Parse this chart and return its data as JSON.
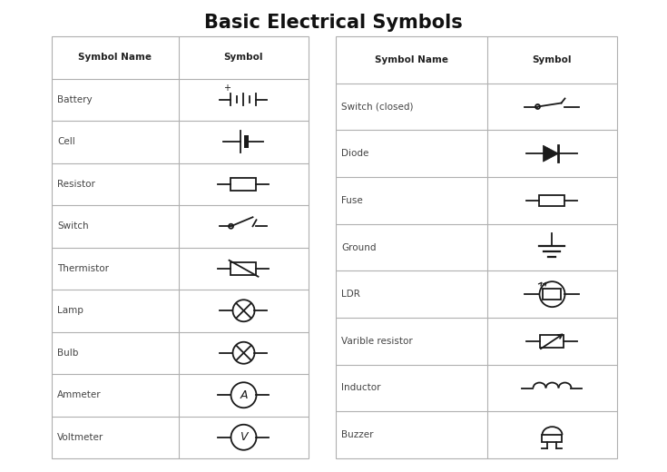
{
  "title": "Basic Electrical Symbols",
  "title_fontsize": 15,
  "title_fontweight": "bold",
  "bg_color": "#ffffff",
  "table_border_color": "#b0b0b0",
  "left_table": {
    "col1_header": "Symbol Name",
    "col2_header": "Symbol",
    "rows": [
      "Battery",
      "Cell",
      "Resistor",
      "Switch",
      "Thermistor",
      "Lamp",
      "Bulb",
      "Ammeter",
      "Voltmeter"
    ]
  },
  "right_table": {
    "col1_header": "Symbol Name",
    "col2_header": "Symbol",
    "rows": [
      "Switch (closed)",
      "Diode",
      "Fuse",
      "Ground",
      "LDR",
      "Varible resistor",
      "Inductor",
      "Buzzer"
    ]
  }
}
